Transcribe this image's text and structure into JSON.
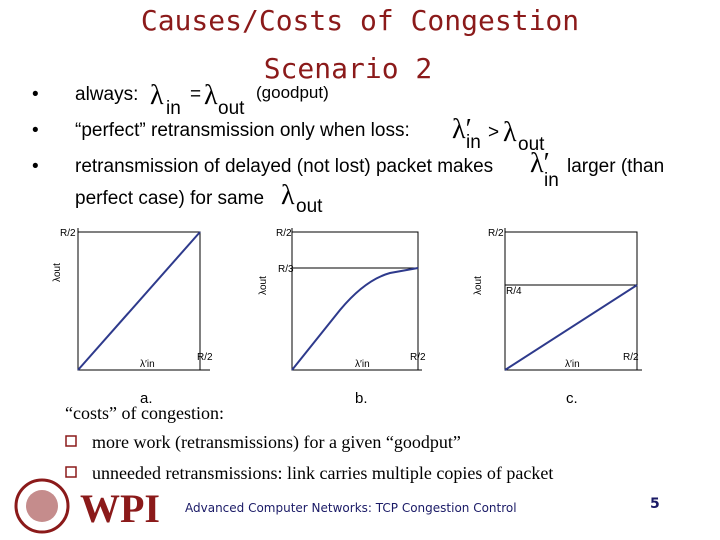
{
  "header": {
    "title": [
      "Causes/Costs of Congestion",
      "Scenario 2"
    ]
  },
  "bullets": [
    [
      "always:",
      "λ",
      "in",
      "=",
      "λ",
      "out",
      "(goodput)"
    ],
    [
      "“perfect” retransmission only when loss:",
      "λ′",
      "in",
      ">",
      "λ",
      "out"
    ],
    [
      "retransmission of delayed (not lost) packet makes",
      "λ′",
      "in",
      "larger (than",
      "perfect case) for same",
      "λ",
      "out"
    ]
  ],
  "plots": [
    {
      "y_axis": "λout",
      "y_top": "R/2",
      "x_axis": "λ′in",
      "x_right": "R/2",
      "caption": "a."
    },
    {
      "y_axis": "λout",
      "y_top": "R/2",
      "y_mid": "R/3",
      "x_axis": "λ′in",
      "x_right": "R/2",
      "caption": "b."
    },
    {
      "y_axis": "λout",
      "y_top": "R/2",
      "y_mid": "R/4",
      "x_axis": "λ′in",
      "x_right": "R/2",
      "caption": "c."
    }
  ],
  "costs": {
    "heading": "“costs” of congestion:",
    "items": [
      "more work (retransmissions) for a given “goodput”",
      "unneeded retransmissions: link carries multiple copies of packet"
    ]
  },
  "footer": {
    "logo": "WPI",
    "text": "Advanced Computer Networks: TCP Congestion Control",
    "page": "5"
  }
}
